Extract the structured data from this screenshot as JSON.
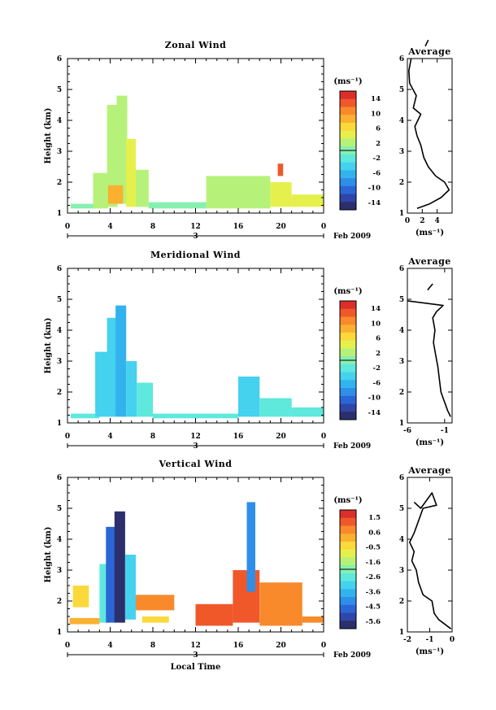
{
  "figure": {
    "date_label": "Feb 2009",
    "day_label": "3",
    "bottom_xlabel": "Local Time",
    "ylabel": "Height (km)",
    "unit_label": "(ms⁻¹)",
    "profile_title": "Average"
  },
  "chart_data": [
    {
      "type": "heatmap",
      "title": "Zonal Wind",
      "xlabel": "",
      "ylabel": "Height (km)",
      "x_ticks": [
        "0",
        "4",
        "8",
        "12",
        "16",
        "20",
        "0"
      ],
      "xlim": [
        0,
        24
      ],
      "y_ticks": [
        "1",
        "2",
        "3",
        "4",
        "5",
        "6"
      ],
      "ylim": [
        1,
        6
      ],
      "colorbar": {
        "label": "(ms⁻¹)",
        "ticks": [
          "14",
          "10",
          "6",
          "2",
          "-2",
          "-6",
          "-10",
          "-14"
        ],
        "range": [
          -16,
          16
        ]
      },
      "regions": [
        {
          "x": [
            0.3,
            2.5
          ],
          "y": [
            1.15,
            1.3
          ],
          "value": 0
        },
        {
          "x": [
            2.4,
            3.8
          ],
          "y": [
            1.15,
            2.3
          ],
          "value": 2
        },
        {
          "x": [
            3.7,
            4.7
          ],
          "y": [
            1.2,
            4.5
          ],
          "value": 3
        },
        {
          "x": [
            4.6,
            5.6
          ],
          "y": [
            1.3,
            4.8
          ],
          "value": 2
        },
        {
          "x": [
            5.5,
            6.4
          ],
          "y": [
            1.2,
            3.4
          ],
          "value": 4
        },
        {
          "x": [
            6.4,
            7.6
          ],
          "y": [
            1.2,
            2.4
          ],
          "value": 3
        },
        {
          "x": [
            3.8,
            5.2
          ],
          "y": [
            1.3,
            1.9
          ],
          "value": 8
        },
        {
          "x": [
            7.6,
            13.0
          ],
          "y": [
            1.15,
            1.35
          ],
          "value": 1
        },
        {
          "x": [
            13.0,
            19.0
          ],
          "y": [
            1.15,
            2.2
          ],
          "value": 3
        },
        {
          "x": [
            19.0,
            21.0
          ],
          "y": [
            1.2,
            2.0
          ],
          "value": 5
        },
        {
          "x": [
            19.7,
            20.2
          ],
          "y": [
            2.2,
            2.6
          ],
          "value": 12
        },
        {
          "x": [
            21.0,
            24.0
          ],
          "y": [
            1.2,
            1.6
          ],
          "value": 4
        }
      ],
      "profile": {
        "title": "Average",
        "xlabel": "(ms⁻¹)",
        "x_ticks": [
          "0",
          "2",
          "4"
        ],
        "xlim": [
          0,
          6
        ],
        "ylim": [
          1,
          6
        ],
        "points": [
          [
            1.3,
            1.15
          ],
          [
            3.0,
            1.3
          ],
          [
            4.5,
            1.5
          ],
          [
            5.6,
            1.75
          ],
          [
            5.0,
            2.0
          ],
          [
            3.8,
            2.2
          ],
          [
            2.8,
            2.5
          ],
          [
            2.2,
            2.8
          ],
          [
            1.8,
            3.2
          ],
          [
            1.3,
            3.5
          ],
          [
            1.0,
            3.8
          ],
          [
            1.8,
            4.2
          ],
          [
            0.8,
            4.4
          ],
          [
            1.2,
            4.8
          ],
          [
            0.3,
            5.2
          ],
          [
            0.2,
            5.6
          ],
          [
            0.5,
            6.0
          ]
        ],
        "extra_segments": [
          [
            [
              2.4,
              6.4
            ],
            [
              2.8,
              6.6
            ]
          ]
        ]
      }
    },
    {
      "type": "heatmap",
      "title": "Meridional Wind",
      "xlabel": "",
      "ylabel": "Height (km)",
      "x_ticks": [
        "0",
        "4",
        "8",
        "12",
        "16",
        "20",
        "0"
      ],
      "xlim": [
        0,
        24
      ],
      "y_ticks": [
        "1",
        "2",
        "3",
        "4",
        "5",
        "6"
      ],
      "ylim": [
        1,
        6
      ],
      "colorbar": {
        "label": "(ms⁻¹)",
        "ticks": [
          "14",
          "10",
          "6",
          "2",
          "-2",
          "-6",
          "-10",
          "-14"
        ],
        "range": [
          -16,
          16
        ]
      },
      "regions": [
        {
          "x": [
            0.3,
            3.0
          ],
          "y": [
            1.15,
            1.3
          ],
          "value": -3
        },
        {
          "x": [
            2.6,
            3.8
          ],
          "y": [
            1.2,
            3.3
          ],
          "value": -4
        },
        {
          "x": [
            3.7,
            4.6
          ],
          "y": [
            1.2,
            4.4
          ],
          "value": -5
        },
        {
          "x": [
            4.5,
            5.5
          ],
          "y": [
            1.2,
            4.8
          ],
          "value": -6
        },
        {
          "x": [
            5.5,
            6.5
          ],
          "y": [
            1.2,
            3.0
          ],
          "value": -4
        },
        {
          "x": [
            6.5,
            8.0
          ],
          "y": [
            1.2,
            2.3
          ],
          "value": -3
        },
        {
          "x": [
            8.0,
            16.0
          ],
          "y": [
            1.15,
            1.3
          ],
          "value": -3
        },
        {
          "x": [
            16.0,
            18.0
          ],
          "y": [
            1.2,
            2.5
          ],
          "value": -4
        },
        {
          "x": [
            18.0,
            21.0
          ],
          "y": [
            1.2,
            1.8
          ],
          "value": -3
        },
        {
          "x": [
            21.0,
            24.0
          ],
          "y": [
            1.2,
            1.5
          ],
          "value": -3
        }
      ],
      "profile": {
        "title": "Average",
        "xlabel": "(ms⁻¹)",
        "x_ticks": [
          "-6",
          "-1"
        ],
        "xlim": [
          -6,
          0
        ],
        "ylim": [
          1,
          6
        ],
        "points": [
          [
            -0.2,
            1.2
          ],
          [
            -0.6,
            1.4
          ],
          [
            -0.9,
            1.6
          ],
          [
            -1.2,
            1.8
          ],
          [
            -1.5,
            2.0
          ],
          [
            -1.7,
            2.4
          ],
          [
            -1.9,
            2.8
          ],
          [
            -2.2,
            3.2
          ],
          [
            -2.5,
            3.6
          ],
          [
            -2.3,
            4.0
          ],
          [
            -2.6,
            4.4
          ],
          [
            -2.1,
            4.6
          ],
          [
            -1.2,
            4.8
          ],
          [
            -6.0,
            4.95
          ]
        ],
        "extra_segments": [
          [
            [
              -3.3,
              5.3
            ],
            [
              -2.6,
              5.5
            ]
          ]
        ]
      }
    },
    {
      "type": "heatmap",
      "title": "Vertical Wind",
      "xlabel": "Local Time",
      "ylabel": "Height (km)",
      "x_ticks": [
        "0",
        "4",
        "8",
        "12",
        "16",
        "20",
        "0"
      ],
      "xlim": [
        0,
        24
      ],
      "y_ticks": [
        "1",
        "2",
        "3",
        "4",
        "5",
        "6"
      ],
      "ylim": [
        1,
        6
      ],
      "colorbar": {
        "label": "(ms⁻¹)",
        "ticks": [
          "1.5",
          "0.6",
          "-0.5",
          "-1.6",
          "-2.6",
          "-3.6",
          "-4.5",
          "-5.6"
        ],
        "range": [
          -6,
          2
        ]
      },
      "regions": [
        {
          "x": [
            0.2,
            3.0
          ],
          "y": [
            1.25,
            1.45
          ],
          "value": 0
        },
        {
          "x": [
            0.5,
            2.0
          ],
          "y": [
            1.8,
            2.5
          ],
          "value": -0.5
        },
        {
          "x": [
            3.0,
            3.7
          ],
          "y": [
            1.3,
            3.2
          ],
          "value": -2.5
        },
        {
          "x": [
            3.6,
            4.5
          ],
          "y": [
            1.3,
            4.4
          ],
          "value": -4.5
        },
        {
          "x": [
            4.4,
            5.4
          ],
          "y": [
            1.3,
            4.9
          ],
          "value": -5.5
        },
        {
          "x": [
            5.4,
            6.4
          ],
          "y": [
            1.4,
            3.5
          ],
          "value": -3.0
        },
        {
          "x": [
            6.4,
            10.0
          ],
          "y": [
            1.7,
            2.2
          ],
          "value": 0.5
        },
        {
          "x": [
            7.0,
            9.5
          ],
          "y": [
            1.3,
            1.5
          ],
          "value": -0.5
        },
        {
          "x": [
            12.0,
            15.5
          ],
          "y": [
            1.2,
            1.9
          ],
          "value": 1.0
        },
        {
          "x": [
            15.5,
            18.0
          ],
          "y": [
            1.3,
            3.0
          ],
          "value": 1.0
        },
        {
          "x": [
            16.8,
            17.6
          ],
          "y": [
            2.3,
            5.2
          ],
          "value": -4.0
        },
        {
          "x": [
            18.0,
            22.0
          ],
          "y": [
            1.2,
            2.6
          ],
          "value": 0.5
        },
        {
          "x": [
            22.0,
            24.0
          ],
          "y": [
            1.3,
            1.5
          ],
          "value": 0.5
        }
      ],
      "profile": {
        "title": "Average",
        "xlabel": "(ms⁻¹)",
        "x_ticks": [
          "-2",
          "-1",
          "0"
        ],
        "xlim": [
          -2,
          0
        ],
        "ylim": [
          1,
          6
        ],
        "points": [
          [
            -0.05,
            1.1
          ],
          [
            -0.6,
            1.4
          ],
          [
            -0.8,
            1.6
          ],
          [
            -0.9,
            2.0
          ],
          [
            -1.3,
            2.2
          ],
          [
            -1.5,
            2.6
          ],
          [
            -1.6,
            3.0
          ],
          [
            -1.8,
            3.3
          ],
          [
            -1.7,
            3.6
          ],
          [
            -1.9,
            3.9
          ],
          [
            -1.7,
            4.2
          ],
          [
            -1.5,
            4.6
          ],
          [
            -1.3,
            5.0
          ],
          [
            -0.7,
            5.1
          ],
          [
            -0.9,
            5.5
          ],
          [
            -1.4,
            5.0
          ],
          [
            -1.7,
            5.2
          ]
        ],
        "extra_segments": []
      }
    }
  ]
}
